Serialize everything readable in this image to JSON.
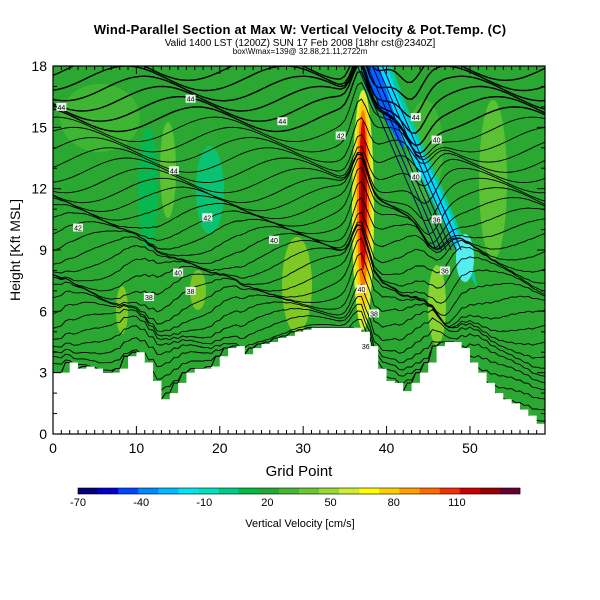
{
  "header": {
    "title": "Wind-Parallel Section at Max W: Vertical Velocity & Pot.Temp. (C)",
    "subtitle": "Valid 1400 LST (1200Z) SUN 17 Feb 2008 [18hr cst@2340Z]",
    "subtitle2": "box\\Wmax=139@ 32.88,21.11,2722m"
  },
  "chart_data": {
    "type": "contour-section",
    "xlabel": "Grid Point",
    "ylabel": "Height [Kft MSL]",
    "xlim": [
      0,
      59
    ],
    "ylim": [
      0,
      18
    ],
    "x_ticks": [
      0,
      10,
      20,
      30,
      40,
      50
    ],
    "y_ticks": [
      0,
      3,
      6,
      9,
      12,
      15,
      18
    ],
    "terrain": [
      [
        0,
        3
      ],
      [
        1,
        3
      ],
      [
        2,
        3.5
      ],
      [
        3,
        3.2
      ],
      [
        4,
        3.3
      ],
      [
        5,
        3.2
      ],
      [
        6,
        3
      ],
      [
        7,
        3
      ],
      [
        8,
        3.2
      ],
      [
        9,
        3.8
      ],
      [
        10,
        4
      ],
      [
        11,
        3.5
      ],
      [
        12,
        2.6
      ],
      [
        13,
        1.7
      ],
      [
        14,
        2
      ],
      [
        15,
        2.5
      ],
      [
        16,
        3
      ],
      [
        17,
        3.2
      ],
      [
        18,
        3.2
      ],
      [
        19,
        3.3
      ],
      [
        20,
        3.8
      ],
      [
        21,
        4.2
      ],
      [
        22,
        4.3
      ],
      [
        23,
        3.9
      ],
      [
        24,
        4.2
      ],
      [
        25,
        4.4
      ],
      [
        26,
        4.5
      ],
      [
        27,
        4.7
      ],
      [
        28,
        4.8
      ],
      [
        29,
        5
      ],
      [
        30,
        5.1
      ],
      [
        31,
        5.2
      ],
      [
        32,
        5.2
      ],
      [
        33,
        5.2
      ],
      [
        34,
        5.2
      ],
      [
        35,
        5.2
      ],
      [
        36,
        5.2
      ],
      [
        37,
        5
      ],
      [
        38,
        4.3
      ],
      [
        39,
        3.2
      ],
      [
        40,
        2.6
      ],
      [
        41,
        2.5
      ],
      [
        42,
        2.1
      ],
      [
        43,
        2.5
      ],
      [
        44,
        3
      ],
      [
        45,
        3.5
      ],
      [
        46,
        4.3
      ],
      [
        47,
        4.5
      ],
      [
        48,
        4.5
      ],
      [
        49,
        4.2
      ],
      [
        50,
        3.5
      ],
      [
        51,
        3
      ],
      [
        52,
        2.5
      ],
      [
        53,
        2
      ],
      [
        54,
        1.7
      ],
      [
        55,
        1.5
      ],
      [
        56,
        1.2
      ],
      [
        57,
        0.9
      ],
      [
        58,
        0.5
      ],
      [
        59,
        0.4
      ]
    ],
    "contour_labels": [
      {
        "text": "44",
        "x": 1,
        "y": 16
      },
      {
        "text": "44",
        "x": 16.5,
        "y": 16.4
      },
      {
        "text": "44",
        "x": 27.5,
        "y": 15.3
      },
      {
        "text": "42",
        "x": 34.5,
        "y": 14.6
      },
      {
        "text": "44",
        "x": 43.5,
        "y": 15.5
      },
      {
        "text": "40",
        "x": 46,
        "y": 14.4
      },
      {
        "text": "44",
        "x": 14.5,
        "y": 12.9
      },
      {
        "text": "40",
        "x": 43.5,
        "y": 12.6
      },
      {
        "text": "42",
        "x": 18.5,
        "y": 10.6
      },
      {
        "text": "42",
        "x": 3,
        "y": 10.1
      },
      {
        "text": "40",
        "x": 26.5,
        "y": 9.5
      },
      {
        "text": "36",
        "x": 46,
        "y": 10.5
      },
      {
        "text": "40",
        "x": 15,
        "y": 7.9
      },
      {
        "text": "38",
        "x": 16.5,
        "y": 7
      },
      {
        "text": "38",
        "x": 11.5,
        "y": 6.7
      },
      {
        "text": "36",
        "x": 47,
        "y": 8
      },
      {
        "text": "40",
        "x": 37,
        "y": 7.1
      },
      {
        "text": "38",
        "x": 38.5,
        "y": 5.9
      },
      {
        "text": "36",
        "x": 37.5,
        "y": 4.3
      }
    ],
    "colorbar": {
      "label": "Vertical Velocity [cm/s]",
      "tick_labels": [
        "-70",
        "-40",
        "-10",
        "20",
        "50",
        "80",
        "110"
      ],
      "tick_values": [
        -70,
        -40,
        -10,
        20,
        50,
        80,
        110
      ],
      "range": [
        -70,
        140
      ],
      "colors": [
        "#000080",
        "#0000cc",
        "#0044ff",
        "#0088ff",
        "#00bbff",
        "#00e5ee",
        "#00e0c0",
        "#00cc88",
        "#00bb44",
        "#22a833",
        "#44b833",
        "#66c833",
        "#99d933",
        "#ccee33",
        "#ffff00",
        "#ffd000",
        "#ffa000",
        "#ff6a00",
        "#f03000",
        "#cc0000",
        "#990000",
        "#660033"
      ]
    }
  }
}
